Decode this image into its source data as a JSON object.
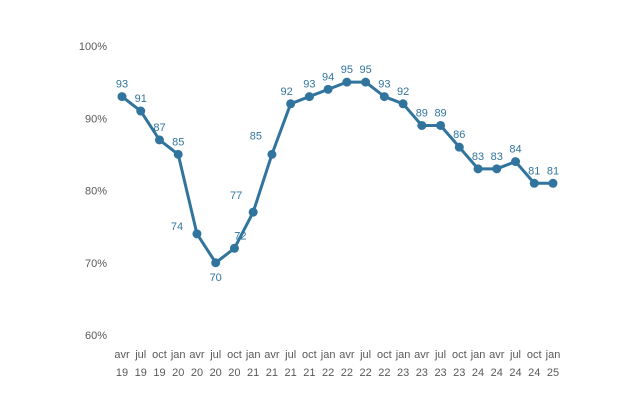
{
  "chart_data": {
    "type": "line",
    "x_months": [
      "avr",
      "jul",
      "oct",
      "jan",
      "avr",
      "jul",
      "oct",
      "jan",
      "avr",
      "jul",
      "oct",
      "jan",
      "avr",
      "jul",
      "oct",
      "jan",
      "avr",
      "jul",
      "oct",
      "jan",
      "avr",
      "jul",
      "oct",
      "jan"
    ],
    "x_years": [
      "19",
      "19",
      "19",
      "20",
      "20",
      "20",
      "20",
      "21",
      "21",
      "21",
      "21",
      "22",
      "22",
      "22",
      "22",
      "23",
      "23",
      "23",
      "23",
      "24",
      "24",
      "24",
      "24",
      "25"
    ],
    "values": [
      93,
      91,
      87,
      85,
      74,
      70,
      72,
      77,
      85,
      92,
      93,
      94,
      95,
      95,
      93,
      92,
      89,
      89,
      86,
      83,
      83,
      84,
      81,
      81
    ],
    "ylim": [
      60,
      100
    ],
    "yticks": [
      60,
      70,
      80,
      90,
      100
    ],
    "ytick_format": "{v}%",
    "grid": false,
    "legend": "none",
    "line_color": "#31749e",
    "marker_color": "#31749e",
    "label_color": "#31749e",
    "axis_text_color": "#595959"
  }
}
